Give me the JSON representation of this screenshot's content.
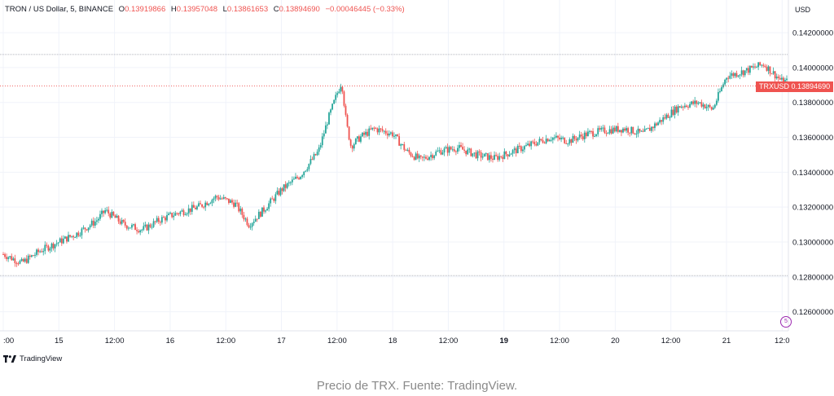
{
  "legend": {
    "symbol": "TRON / US Dollar, 5, BINANCE",
    "open_label": "O",
    "open": "0.13919866",
    "high_label": "H",
    "high": "0.13957048",
    "low_label": "L",
    "low": "0.13861653",
    "close_label": "C",
    "close": "0.13894690",
    "change": "−0.00046445 (−0.33%)"
  },
  "currency": "USD",
  "price_badge": {
    "symbol": "TRXUSD",
    "price": "0.13894690"
  },
  "brand": "TradingView",
  "caption": "Precio de TRX. Fuente: TradingView.",
  "marker_badge": "5",
  "colors": {
    "up": "#26a69a",
    "down": "#ef5350",
    "grid": "#f0f3fa",
    "badge": "#ef5350"
  },
  "chart_data": {
    "type": "candlestick",
    "interval": "5",
    "ylim": [
      0.125,
      0.1435
    ],
    "y_ticks": [
      "0.12600000",
      "0.12800000",
      "0.13000000",
      "0.13200000",
      "0.13400000",
      "0.13600000",
      "0.13800000",
      "0.14000000",
      "0.14200000"
    ],
    "y_tick_values": [
      0.126,
      0.128,
      0.13,
      0.132,
      0.134,
      0.136,
      0.138,
      0.14,
      0.142
    ],
    "x_ticks": [
      {
        "label": ":00",
        "t": 0
      },
      {
        "label": "15",
        "t": 12
      },
      {
        "label": "12:00",
        "t": 24
      },
      {
        "label": "16",
        "t": 36
      },
      {
        "label": "12:00",
        "t": 48
      },
      {
        "label": "17",
        "t": 60
      },
      {
        "label": "12:00",
        "t": 72
      },
      {
        "label": "18",
        "t": 84
      },
      {
        "label": "12:00",
        "t": 96
      },
      {
        "label": "19",
        "t": 108,
        "bold": true
      },
      {
        "label": "12:00",
        "t": 120
      },
      {
        "label": "20",
        "t": 132
      },
      {
        "label": "12:00",
        "t": 144
      },
      {
        "label": "21",
        "t": 156
      },
      {
        "label": "12:0",
        "t": 168
      }
    ],
    "t_range": [
      0,
      169
    ],
    "high_line": 0.14075,
    "low_line": 0.12807,
    "last_price": 0.1389469,
    "price_path": [
      [
        0,
        0.1293
      ],
      [
        4,
        0.1288
      ],
      [
        8,
        0.1295
      ],
      [
        12,
        0.13
      ],
      [
        16,
        0.1305
      ],
      [
        20,
        0.1312
      ],
      [
        22,
        0.1318
      ],
      [
        26,
        0.131
      ],
      [
        30,
        0.1307
      ],
      [
        34,
        0.1313
      ],
      [
        38,
        0.1317
      ],
      [
        42,
        0.132
      ],
      [
        46,
        0.1326
      ],
      [
        50,
        0.1322
      ],
      [
        53,
        0.131
      ],
      [
        56,
        0.1318
      ],
      [
        60,
        0.133
      ],
      [
        64,
        0.1338
      ],
      [
        68,
        0.1352
      ],
      [
        70,
        0.137
      ],
      [
        72,
        0.1385
      ],
      [
        73,
        0.1392
      ],
      [
        74,
        0.1368
      ],
      [
        75,
        0.1355
      ],
      [
        77,
        0.136
      ],
      [
        80,
        0.1365
      ],
      [
        84,
        0.1362
      ],
      [
        87,
        0.1352
      ],
      [
        90,
        0.1347
      ],
      [
        94,
        0.1352
      ],
      [
        98,
        0.1354
      ],
      [
        102,
        0.135
      ],
      [
        106,
        0.1348
      ],
      [
        110,
        0.1352
      ],
      [
        114,
        0.1356
      ],
      [
        118,
        0.136
      ],
      [
        122,
        0.1358
      ],
      [
        126,
        0.1362
      ],
      [
        130,
        0.1364
      ],
      [
        134,
        0.1365
      ],
      [
        138,
        0.1362
      ],
      [
        142,
        0.137
      ],
      [
        146,
        0.1378
      ],
      [
        150,
        0.138
      ],
      [
        153,
        0.1376
      ],
      [
        156,
        0.1395
      ],
      [
        160,
        0.1398
      ],
      [
        164,
        0.1402
      ],
      [
        168,
        0.1392
      ]
    ]
  }
}
